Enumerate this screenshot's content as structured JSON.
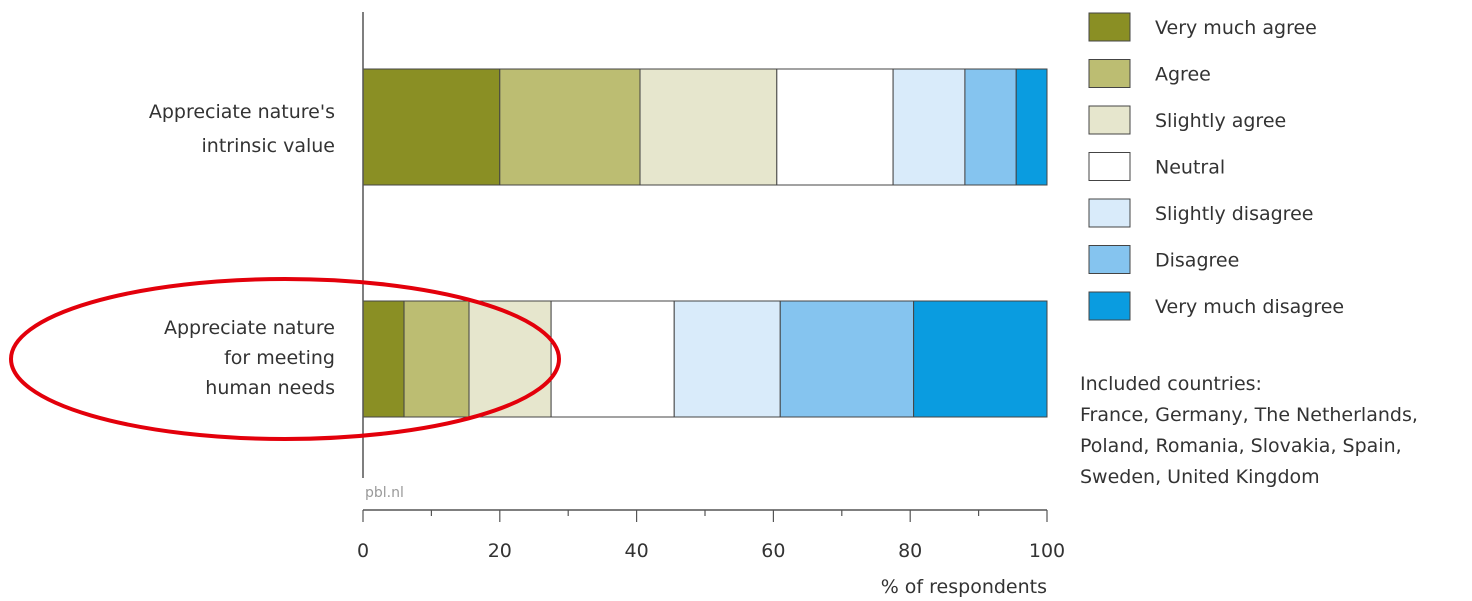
{
  "chart_data": {
    "type": "bar",
    "orientation": "horizontal",
    "stacked": true,
    "categories": [
      "Appreciate nature's intrinsic value",
      "Appreciate nature for meeting human needs"
    ],
    "category_label_lines": [
      [
        "Appreciate nature's",
        "intrinsic value"
      ],
      [
        "Appreciate nature",
        "for meeting",
        "human needs"
      ]
    ],
    "series": [
      {
        "name": "Very much agree",
        "color": "#8a8f24",
        "values": [
          20,
          6
        ]
      },
      {
        "name": "Agree",
        "color": "#bcbd72",
        "values": [
          20.5,
          9.5
        ]
      },
      {
        "name": "Slightly agree",
        "color": "#e6e6cd",
        "values": [
          20,
          12
        ]
      },
      {
        "name": "Neutral",
        "color": "#ffffff",
        "values": [
          17,
          18
        ]
      },
      {
        "name": "Slightly disagree",
        "color": "#d9ebfa",
        "values": [
          10.5,
          15.5
        ]
      },
      {
        "name": "Disagree",
        "color": "#85c4ef",
        "values": [
          7.5,
          19.5
        ]
      },
      {
        "name": "Very much disagree",
        "color": "#0a9ce0",
        "values": [
          4.5,
          19.5
        ]
      }
    ],
    "xlim": [
      0,
      100
    ],
    "xticks": [
      0,
      20,
      40,
      60,
      80,
      100
    ],
    "xlabel": "% of respondents",
    "credit": "pbl.nl",
    "legend_position": "right",
    "note_lines": [
      "Included countries:",
      "France, Germany, The Netherlands,",
      "Poland, Romania, Slovakia, Spain,",
      "Sweden, United Kingdom"
    ],
    "annotation": {
      "shape": "ellipse",
      "color": "#e3000b",
      "encloses": "Appreciate nature for meeting human needs"
    },
    "grid": false
  }
}
